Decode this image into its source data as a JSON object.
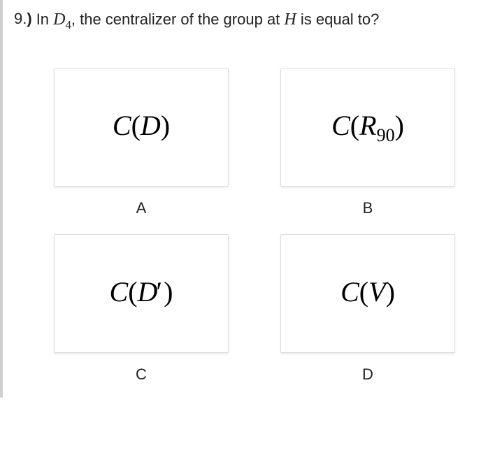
{
  "question": {
    "number": "9.",
    "paren": ")",
    "prefix": "In ",
    "math1_var": "D",
    "math1_sub": "4",
    "middle": ", the centralizer of the group at ",
    "math2_var": "H",
    "suffix": " is equal to?"
  },
  "options": [
    {
      "label": "A",
      "math_prefix": "C",
      "open": "(",
      "var": "D",
      "sub": "",
      "prime": "",
      "close": ")"
    },
    {
      "label": "B",
      "math_prefix": "C",
      "open": "(",
      "var": "R",
      "sub": "90",
      "prime": "",
      "close": ")"
    },
    {
      "label": "C",
      "math_prefix": "C",
      "open": "(",
      "var": "D",
      "sub": "",
      "prime": "′",
      "close": ")"
    },
    {
      "label": "D",
      "math_prefix": "C",
      "open": "(",
      "var": "V",
      "sub": "",
      "prime": "",
      "close": ")"
    }
  ],
  "styles": {
    "body_width": 718,
    "border_left_color": "#d0d0d0",
    "text_color": "#222222",
    "card_border_color": "#dddddd"
  }
}
